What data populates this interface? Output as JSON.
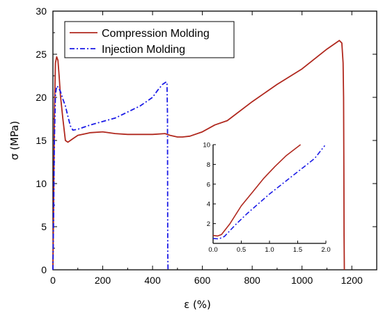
{
  "chart_data": [
    {
      "type": "line",
      "title": "",
      "xlabel": "ε (%)",
      "ylabel": "σ (MPa)",
      "xlim": [
        0,
        1300
      ],
      "ylim": [
        0,
        30
      ],
      "xticks": [
        0,
        200,
        400,
        600,
        800,
        1000,
        1200
      ],
      "yticks": [
        0,
        5,
        10,
        15,
        20,
        25,
        30
      ],
      "grid": false,
      "legend_position": "top-left",
      "series": [
        {
          "name": "Compression Molding",
          "color": "#b0281e",
          "style": "solid",
          "x": [
            0,
            3,
            6,
            10,
            15,
            20,
            25,
            30,
            40,
            50,
            60,
            80,
            100,
            150,
            200,
            250,
            300,
            350,
            400,
            450,
            470,
            500,
            520,
            550,
            600,
            650,
            700,
            800,
            900,
            1000,
            1100,
            1150,
            1160,
            1165,
            1167,
            1168,
            1169,
            1170
          ],
          "y": [
            0,
            8,
            18,
            24.0,
            24.7,
            24.3,
            22.5,
            20.3,
            17.5,
            15.0,
            14.8,
            15.2,
            15.6,
            15.9,
            16.0,
            15.8,
            15.7,
            15.7,
            15.7,
            15.8,
            15.6,
            15.4,
            15.4,
            15.5,
            16.0,
            16.8,
            17.3,
            19.5,
            21.5,
            23.3,
            25.6,
            26.6,
            26.3,
            24.0,
            20.0,
            12.0,
            4.0,
            0
          ]
        },
        {
          "name": "Injection Molding",
          "color": "#1a1ae6",
          "style": "dashdot",
          "x": [
            0,
            3,
            6,
            10,
            15,
            20,
            30,
            40,
            50,
            60,
            70,
            80,
            100,
            150,
            200,
            250,
            300,
            350,
            400,
            420,
            440,
            455,
            458,
            460,
            460.5,
            461,
            462
          ],
          "y": [
            0,
            7,
            15,
            20.3,
            21.3,
            21.2,
            20.7,
            19.8,
            19.0,
            17.8,
            16.7,
            16.2,
            16.3,
            16.8,
            17.2,
            17.6,
            18.3,
            19.0,
            20.0,
            20.8,
            21.5,
            21.8,
            21.6,
            18.0,
            10.0,
            2.0,
            0
          ]
        }
      ]
    },
    {
      "type": "line",
      "title": "",
      "xlabel": "",
      "ylabel": "",
      "xlim": [
        0,
        2.0
      ],
      "ylim": [
        0,
        10
      ],
      "xticks": [
        "0.0",
        "0.5",
        "1.0",
        "1.5",
        "2.0"
      ],
      "yticks": [
        "2",
        "4",
        "6",
        "8",
        "10"
      ],
      "grid": false,
      "series": [
        {
          "color": "#b0281e",
          "style": "solid",
          "x": [
            0,
            0.08,
            0.15,
            0.3,
            0.5,
            0.7,
            0.9,
            1.1,
            1.3,
            1.55
          ],
          "y": [
            0.8,
            0.75,
            0.9,
            2.0,
            3.8,
            5.2,
            6.6,
            7.8,
            8.9,
            10.0
          ]
        },
        {
          "color": "#1a1ae6",
          "style": "dashdot",
          "x": [
            0,
            0.1,
            0.2,
            0.4,
            0.6,
            0.8,
            1.0,
            1.2,
            1.4,
            1.6,
            1.8,
            1.98
          ],
          "y": [
            0.5,
            0.45,
            0.7,
            1.9,
            3.0,
            4.0,
            5.0,
            5.9,
            6.8,
            7.7,
            8.6,
            9.9
          ]
        }
      ]
    }
  ]
}
